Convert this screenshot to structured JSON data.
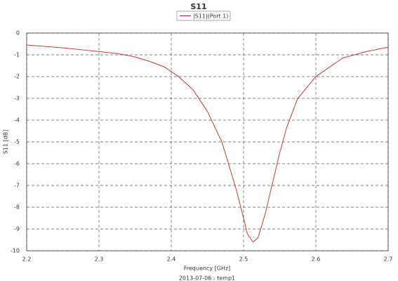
{
  "chart_data": {
    "type": "line",
    "title": "S11",
    "xlabel": "Frequency [GHz]",
    "ylabel": "S11 [dB]",
    "footnote": "2013-07-06 : temp1",
    "x": [
      2.2,
      2.25,
      2.3,
      2.327,
      2.35,
      2.37,
      2.39,
      2.41,
      2.43,
      2.45,
      2.47,
      2.49,
      2.5,
      2.505,
      2.513,
      2.52,
      2.53,
      2.54,
      2.55,
      2.56,
      2.575,
      2.6,
      2.637,
      2.67,
      2.7
    ],
    "series": [
      {
        "name": "|S11|(Port 1)",
        "color": "#cc2222",
        "values": [
          -0.55,
          -0.68,
          -0.85,
          -0.95,
          -1.1,
          -1.3,
          -1.55,
          -2.0,
          -2.6,
          -3.6,
          -5.0,
          -7.2,
          -8.5,
          -9.2,
          -9.6,
          -9.4,
          -8.3,
          -6.9,
          -5.5,
          -4.3,
          -3.0,
          -2.0,
          -1.15,
          -0.85,
          -0.65
        ]
      }
    ],
    "xlim": [
      2.2,
      2.7
    ],
    "xticks": [
      2.2,
      2.3,
      2.4,
      2.5,
      2.6,
      2.7
    ],
    "ylim": [
      -10,
      0
    ],
    "yticks": [
      0,
      -1,
      -2,
      -3,
      -4,
      -5,
      -6,
      -7,
      -8,
      -9,
      -10
    ],
    "grid": true
  }
}
